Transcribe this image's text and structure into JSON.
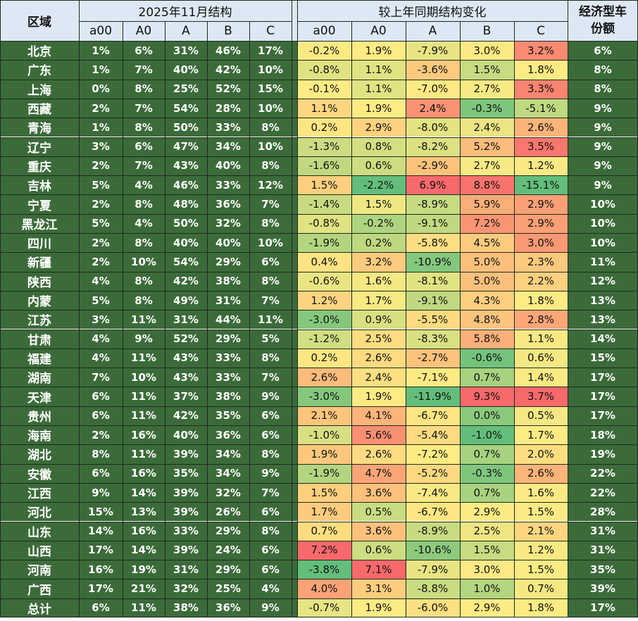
{
  "header": {
    "region_label": "区域",
    "structure_title": "2025年11月结构",
    "change_title": "较上年同期结构变化",
    "econ_title": "经济型车份额",
    "segments": [
      "a00",
      "A0",
      "A",
      "B",
      "C"
    ]
  },
  "chart_data": {
    "type": "table",
    "columns": [
      "区域",
      "a00",
      "A0",
      "A",
      "B",
      "C",
      "a00",
      "A0",
      "A",
      "B",
      "C",
      "经济型车份额"
    ],
    "rows": [
      {
        "region": "北京",
        "structure": [
          "1%",
          "6%",
          "31%",
          "46%",
          "17%"
        ],
        "change": [
          "-0.2%",
          "1.9%",
          "-7.9%",
          "3.0%",
          "3.2%"
        ],
        "econ": "6%"
      },
      {
        "region": "广东",
        "structure": [
          "1%",
          "7%",
          "40%",
          "42%",
          "10%"
        ],
        "change": [
          "-0.8%",
          "1.1%",
          "-3.6%",
          "1.5%",
          "1.8%"
        ],
        "econ": "8%"
      },
      {
        "region": "上海",
        "structure": [
          "0%",
          "8%",
          "25%",
          "52%",
          "15%"
        ],
        "change": [
          "-0.1%",
          "1.1%",
          "-7.0%",
          "2.7%",
          "3.3%"
        ],
        "econ": "8%"
      },
      {
        "region": "西藏",
        "structure": [
          "2%",
          "7%",
          "54%",
          "28%",
          "10%"
        ],
        "change": [
          "1.1%",
          "1.9%",
          "2.4%",
          "-0.3%",
          "-5.1%"
        ],
        "econ": "9%"
      },
      {
        "region": "青海",
        "structure": [
          "1%",
          "8%",
          "50%",
          "33%",
          "8%"
        ],
        "change": [
          "0.2%",
          "2.9%",
          "-8.0%",
          "2.4%",
          "2.6%"
        ],
        "econ": "9%"
      },
      {
        "region": "辽宁",
        "structure": [
          "3%",
          "6%",
          "47%",
          "34%",
          "10%"
        ],
        "change": [
          "-1.3%",
          "0.8%",
          "-8.2%",
          "5.2%",
          "3.5%"
        ],
        "econ": "9%"
      },
      {
        "region": "重庆",
        "structure": [
          "2%",
          "7%",
          "43%",
          "40%",
          "8%"
        ],
        "change": [
          "-1.6%",
          "0.6%",
          "-2.9%",
          "2.7%",
          "1.2%"
        ],
        "econ": "9%"
      },
      {
        "region": "吉林",
        "structure": [
          "5%",
          "4%",
          "46%",
          "33%",
          "12%"
        ],
        "change": [
          "1.5%",
          "-2.2%",
          "6.9%",
          "8.8%",
          "-15.1%"
        ],
        "econ": "9%"
      },
      {
        "region": "宁夏",
        "structure": [
          "2%",
          "8%",
          "48%",
          "36%",
          "7%"
        ],
        "change": [
          "-1.4%",
          "1.5%",
          "-8.9%",
          "5.9%",
          "2.9%"
        ],
        "econ": "10%"
      },
      {
        "region": "黑龙江",
        "structure": [
          "5%",
          "4%",
          "50%",
          "32%",
          "8%"
        ],
        "change": [
          "-0.8%",
          "-0.2%",
          "-9.1%",
          "7.2%",
          "2.9%"
        ],
        "econ": "10%"
      },
      {
        "region": "四川",
        "structure": [
          "2%",
          "8%",
          "40%",
          "40%",
          "10%"
        ],
        "change": [
          "-1.9%",
          "0.2%",
          "-5.8%",
          "4.5%",
          "3.0%"
        ],
        "econ": "10%"
      },
      {
        "region": "新疆",
        "structure": [
          "2%",
          "10%",
          "54%",
          "29%",
          "6%"
        ],
        "change": [
          "0.4%",
          "3.2%",
          "-10.9%",
          "5.0%",
          "2.3%"
        ],
        "econ": "11%"
      },
      {
        "region": "陕西",
        "structure": [
          "4%",
          "8%",
          "42%",
          "38%",
          "8%"
        ],
        "change": [
          "-0.6%",
          "1.6%",
          "-8.1%",
          "5.0%",
          "2.2%"
        ],
        "econ": "12%"
      },
      {
        "region": "内蒙",
        "structure": [
          "5%",
          "8%",
          "49%",
          "31%",
          "7%"
        ],
        "change": [
          "1.2%",
          "1.7%",
          "-9.1%",
          "4.3%",
          "1.8%"
        ],
        "econ": "13%"
      },
      {
        "region": "江苏",
        "structure": [
          "3%",
          "11%",
          "31%",
          "44%",
          "11%"
        ],
        "change": [
          "-3.0%",
          "0.9%",
          "-5.5%",
          "4.8%",
          "2.8%"
        ],
        "econ": "13%"
      },
      {
        "region": "甘肃",
        "structure": [
          "4%",
          "9%",
          "52%",
          "29%",
          "5%"
        ],
        "change": [
          "-1.2%",
          "2.5%",
          "-8.3%",
          "5.8%",
          "1.1%"
        ],
        "econ": "14%"
      },
      {
        "region": "福建",
        "structure": [
          "4%",
          "11%",
          "43%",
          "33%",
          "8%"
        ],
        "change": [
          "0.2%",
          "2.6%",
          "-2.7%",
          "-0.6%",
          "0.6%"
        ],
        "econ": "15%"
      },
      {
        "region": "湖南",
        "structure": [
          "7%",
          "10%",
          "43%",
          "33%",
          "7%"
        ],
        "change": [
          "2.6%",
          "2.4%",
          "-7.1%",
          "0.7%",
          "1.4%"
        ],
        "econ": "17%"
      },
      {
        "region": "天津",
        "structure": [
          "6%",
          "11%",
          "37%",
          "38%",
          "9%"
        ],
        "change": [
          "-3.0%",
          "1.9%",
          "-11.9%",
          "9.3%",
          "3.7%"
        ],
        "econ": "17%"
      },
      {
        "region": "贵州",
        "structure": [
          "6%",
          "11%",
          "42%",
          "35%",
          "6%"
        ],
        "change": [
          "2.1%",
          "4.1%",
          "-6.7%",
          "0.0%",
          "0.5%"
        ],
        "econ": "17%"
      },
      {
        "region": "海南",
        "structure": [
          "2%",
          "16%",
          "40%",
          "36%",
          "6%"
        ],
        "change": [
          "-1.0%",
          "5.6%",
          "-5.4%",
          "-1.0%",
          "1.7%"
        ],
        "econ": "18%"
      },
      {
        "region": "湖北",
        "structure": [
          "8%",
          "11%",
          "39%",
          "34%",
          "8%"
        ],
        "change": [
          "1.9%",
          "2.6%",
          "-7.2%",
          "0.7%",
          "2.0%"
        ],
        "econ": "19%"
      },
      {
        "region": "安徽",
        "structure": [
          "6%",
          "16%",
          "35%",
          "34%",
          "9%"
        ],
        "change": [
          "-1.9%",
          "4.7%",
          "-5.2%",
          "-0.3%",
          "2.6%"
        ],
        "econ": "22%"
      },
      {
        "region": "江西",
        "structure": [
          "9%",
          "14%",
          "39%",
          "32%",
          "7%"
        ],
        "change": [
          "1.5%",
          "3.6%",
          "-7.4%",
          "0.7%",
          "1.6%"
        ],
        "econ": "22%"
      },
      {
        "region": "河北",
        "structure": [
          "15%",
          "13%",
          "39%",
          "26%",
          "6%"
        ],
        "change": [
          "1.7%",
          "0.5%",
          "-6.7%",
          "2.9%",
          "1.5%"
        ],
        "econ": "28%"
      },
      {
        "region": "山东",
        "structure": [
          "14%",
          "16%",
          "33%",
          "29%",
          "8%"
        ],
        "change": [
          "0.7%",
          "3.6%",
          "-8.9%",
          "2.5%",
          "2.1%"
        ],
        "econ": "31%"
      },
      {
        "region": "山西",
        "structure": [
          "17%",
          "14%",
          "39%",
          "24%",
          "6%"
        ],
        "change": [
          "7.2%",
          "0.6%",
          "-10.6%",
          "1.5%",
          "1.2%"
        ],
        "econ": "31%"
      },
      {
        "region": "河南",
        "structure": [
          "16%",
          "19%",
          "31%",
          "29%",
          "6%"
        ],
        "change": [
          "-3.8%",
          "7.1%",
          "-7.9%",
          "3.0%",
          "1.5%"
        ],
        "econ": "35%"
      },
      {
        "region": "广西",
        "structure": [
          "17%",
          "21%",
          "32%",
          "25%",
          "4%"
        ],
        "change": [
          "4.0%",
          "3.1%",
          "-8.8%",
          "1.0%",
          "0.7%"
        ],
        "econ": "39%"
      },
      {
        "region": "总计",
        "structure": [
          "6%",
          "11%",
          "38%",
          "36%",
          "9%"
        ],
        "change": [
          "-0.7%",
          "1.9%",
          "-6.0%",
          "2.9%",
          "1.8%"
        ],
        "econ": "17%"
      }
    ]
  },
  "colors": {
    "header_bg": "#dde8f4",
    "dark_cell_bg": "#3c6b3a",
    "dark_cell_text": "#ffffff",
    "scale_min": "#63be7b",
    "scale_mid": "#ffeb84",
    "scale_max": "#f8696b"
  }
}
